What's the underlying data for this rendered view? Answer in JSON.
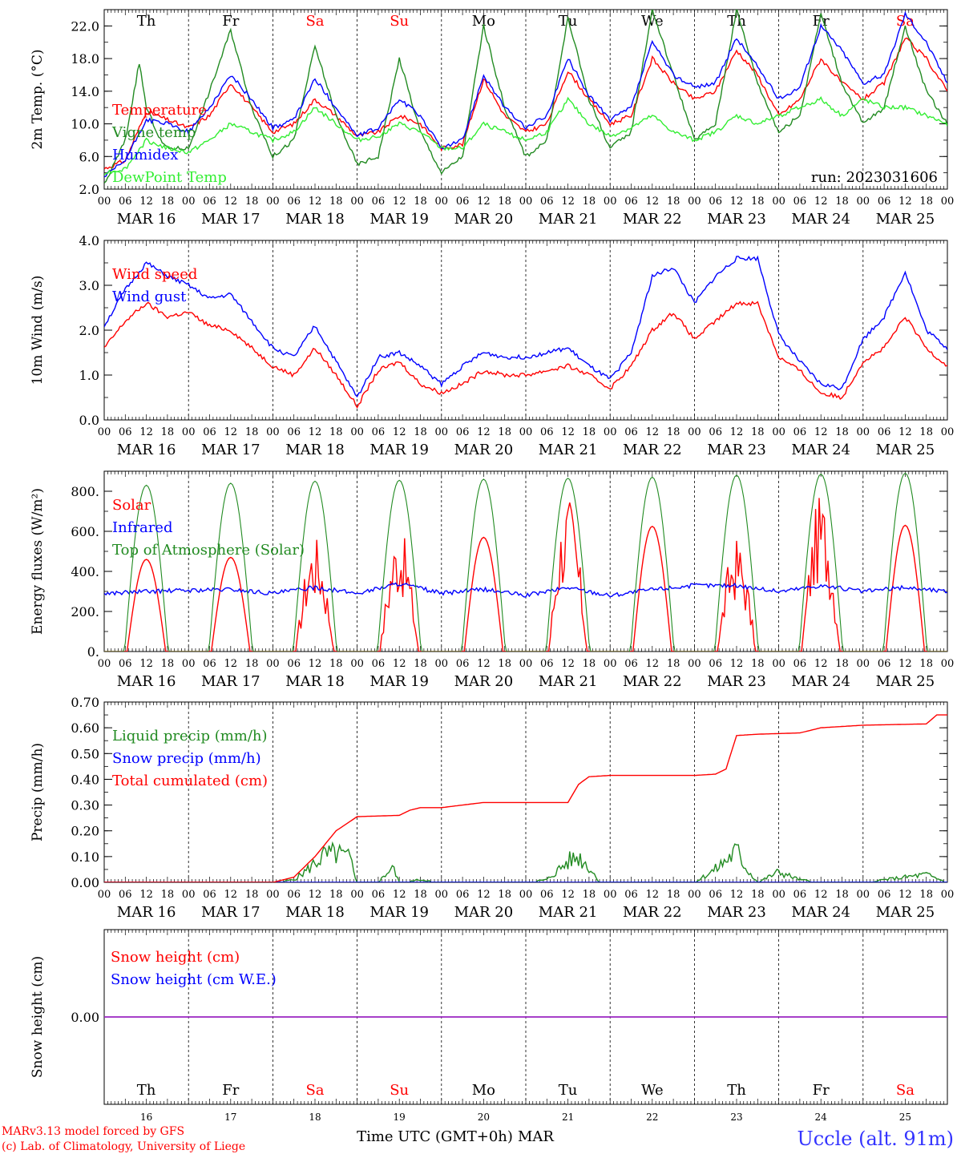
{
  "time_axis": {
    "tick_hours": [
      "00",
      "06",
      "12",
      "18"
    ],
    "last_tick": "00",
    "dates": [
      "MAR 16",
      "MAR 17",
      "MAR 18",
      "MAR 19",
      "MAR 20",
      "MAR 21",
      "MAR 22",
      "MAR 23",
      "MAR 24",
      "MAR 25"
    ],
    "day_names": [
      "Th",
      "Fr",
      "Sa",
      "Su",
      "Mo",
      "Tu",
      "We",
      "Th",
      "Fr",
      "Sa"
    ],
    "day_numbers": [
      "16",
      "17",
      "18",
      "19",
      "20",
      "21",
      "22",
      "23",
      "24",
      "25"
    ],
    "weekend_color": "#ff0000",
    "weekday_color": "#000000",
    "xlabel": "Time UTC (GMT+0h)",
    "month": "MAR"
  },
  "footer": {
    "credit_line1": "MARv3.13 model forced by GFS",
    "credit_line2": "(c) Lab. of Climatology, University of Liege",
    "station": "Uccle (alt. 91m)"
  },
  "chart_data": [
    {
      "type": "line",
      "ylabel": "2m Temp. (°C)",
      "ylim": [
        2,
        24
      ],
      "yticks": [
        "2.0",
        "6.0",
        "10.0",
        "14.0",
        "18.0",
        "22.0"
      ],
      "annotation": "run: 2023031606",
      "x_unit": "hours since MAR 16 00 UTC",
      "series": [
        {
          "name": "Temperature",
          "color": "#ff0000",
          "x": [
            0,
            6,
            12,
            18,
            24,
            30,
            36,
            42,
            48,
            54,
            60,
            66,
            72,
            78,
            84,
            90,
            96,
            102,
            108,
            114,
            120,
            126,
            132,
            138,
            144,
            150,
            156,
            162,
            168,
            174,
            180,
            186,
            192,
            198,
            204,
            210,
            216,
            222,
            228,
            234,
            240
          ],
          "y": [
            4.5,
            5.5,
            11.5,
            10.5,
            9.5,
            11,
            15,
            12,
            9,
            10,
            13,
            11,
            8.5,
            9,
            11,
            10,
            7,
            7.5,
            15.5,
            11,
            9,
            10,
            16.5,
            13,
            10,
            11,
            18,
            15,
            13,
            14,
            19,
            16,
            11,
            13,
            18,
            15,
            13,
            15,
            20.5,
            18,
            14
          ]
        },
        {
          "name": "Vigne temp",
          "color": "#228b22",
          "x": [
            0,
            6,
            10,
            12,
            16,
            18,
            24,
            30,
            36,
            42,
            48,
            54,
            60,
            66,
            72,
            78,
            84,
            90,
            96,
            102,
            108,
            114,
            120,
            126,
            132,
            138,
            144,
            150,
            156,
            162,
            168,
            174,
            180,
            186,
            192,
            198,
            204,
            210,
            216,
            222,
            228,
            234,
            240
          ],
          "y": [
            2.5,
            8,
            17.5,
            12,
            8,
            7,
            7,
            14,
            21.5,
            12,
            6,
            8,
            19.5,
            11,
            5,
            6,
            18,
            9,
            4,
            6,
            22,
            12,
            6,
            8,
            23,
            13,
            7,
            9,
            24,
            16,
            8,
            10,
            24,
            15,
            9,
            11,
            23.5,
            15,
            10,
            12,
            22,
            14,
            10
          ]
        },
        {
          "name": "Humidex",
          "color": "#0000ff",
          "x": [
            0,
            6,
            12,
            18,
            24,
            30,
            36,
            42,
            48,
            54,
            60,
            66,
            72,
            78,
            84,
            90,
            96,
            102,
            108,
            114,
            120,
            126,
            132,
            138,
            144,
            150,
            156,
            162,
            168,
            174,
            180,
            186,
            192,
            198,
            204,
            210,
            216,
            222,
            228,
            234,
            240
          ],
          "y": [
            3.5,
            5.5,
            10.5,
            10,
            9,
            12,
            16,
            13,
            9.5,
            10.5,
            15.5,
            12,
            8.5,
            9.5,
            13,
            11,
            7,
            8,
            16,
            12,
            9.5,
            11,
            18,
            13.5,
            10.5,
            12,
            20,
            16,
            14.5,
            15,
            20.5,
            17,
            13,
            14.5,
            22,
            19,
            15,
            16,
            23.5,
            20,
            15
          ]
        },
        {
          "name": "DewPoint Temp",
          "color": "#33ee33",
          "x": [
            0,
            6,
            12,
            18,
            24,
            30,
            36,
            42,
            48,
            54,
            60,
            66,
            72,
            78,
            84,
            90,
            96,
            102,
            108,
            114,
            120,
            126,
            132,
            138,
            144,
            150,
            156,
            162,
            168,
            174,
            180,
            186,
            192,
            198,
            204,
            210,
            216,
            222,
            228,
            234,
            240
          ],
          "y": [
            4,
            4.5,
            8,
            7,
            6.5,
            8,
            10,
            9,
            8,
            9,
            12,
            10,
            8,
            8.5,
            10,
            9,
            7,
            7,
            10,
            9,
            8,
            9,
            13,
            10,
            8.5,
            9.5,
            11,
            9,
            8,
            9,
            11,
            10,
            11,
            12,
            13,
            11,
            13,
            12,
            12,
            11,
            10
          ]
        }
      ]
    },
    {
      "type": "line",
      "ylabel": "10m Wind (m/s)",
      "ylim": [
        0,
        4
      ],
      "yticks": [
        "0.0",
        "1.0",
        "2.0",
        "3.0",
        "4.0"
      ],
      "x_unit": "hours since MAR 16 00 UTC",
      "series": [
        {
          "name": "Wind speed",
          "color": "#ff0000",
          "x": [
            0,
            6,
            12,
            18,
            24,
            30,
            36,
            42,
            48,
            54,
            60,
            66,
            72,
            78,
            84,
            90,
            96,
            102,
            108,
            114,
            120,
            126,
            132,
            138,
            144,
            150,
            156,
            162,
            168,
            174,
            180,
            186,
            192,
            198,
            204,
            210,
            216,
            222,
            228,
            234,
            240
          ],
          "y": [
            1.6,
            2.2,
            2.6,
            2.3,
            2.4,
            2.1,
            2.0,
            1.6,
            1.2,
            1.0,
            1.6,
            1.0,
            0.3,
            1.1,
            1.3,
            0.8,
            0.6,
            0.8,
            1.1,
            1.0,
            1.0,
            1.1,
            1.2,
            1.0,
            0.7,
            1.2,
            2.0,
            2.4,
            1.8,
            2.2,
            2.6,
            2.6,
            1.4,
            1.1,
            0.6,
            0.5,
            1.3,
            1.6,
            2.3,
            1.6,
            1.2
          ]
        },
        {
          "name": "Wind gust",
          "color": "#0000ff",
          "x": [
            0,
            6,
            12,
            18,
            24,
            30,
            36,
            42,
            48,
            54,
            60,
            66,
            72,
            78,
            84,
            90,
            96,
            102,
            108,
            114,
            120,
            126,
            132,
            138,
            144,
            150,
            156,
            162,
            168,
            174,
            180,
            186,
            192,
            198,
            204,
            210,
            216,
            222,
            228,
            234,
            240
          ],
          "y": [
            2.1,
            2.9,
            3.5,
            3.2,
            3.0,
            2.7,
            2.8,
            2.2,
            1.6,
            1.4,
            2.1,
            1.3,
            0.5,
            1.4,
            1.5,
            1.2,
            0.8,
            1.2,
            1.5,
            1.4,
            1.4,
            1.5,
            1.6,
            1.2,
            0.9,
            1.5,
            3.2,
            3.4,
            2.6,
            3.2,
            3.6,
            3.6,
            1.9,
            1.3,
            0.8,
            0.7,
            1.8,
            2.3,
            3.3,
            2.0,
            1.6
          ]
        }
      ]
    },
    {
      "type": "line",
      "ylabel": "Energy fluxes (W/m²)",
      "ylim": [
        0,
        900
      ],
      "yticks": [
        "0.",
        "200.",
        "400.",
        "600.",
        "800."
      ],
      "x_unit": "hours since MAR 16 00 UTC",
      "series": [
        {
          "name": "Solar",
          "color": "#ff0000",
          "daily_peak": [
            460,
            470,
            460,
            490,
            570,
            620,
            625,
            450,
            620,
            630
          ]
        },
        {
          "name": "Infrared",
          "color": "#0000ff",
          "x": [
            0,
            12,
            24,
            36,
            48,
            60,
            72,
            84,
            96,
            108,
            120,
            132,
            144,
            156,
            168,
            180,
            192,
            204,
            216,
            228,
            240
          ],
          "y": [
            290,
            300,
            305,
            310,
            290,
            320,
            290,
            340,
            290,
            310,
            280,
            320,
            280,
            310,
            330,
            330,
            300,
            330,
            300,
            320,
            300
          ]
        },
        {
          "name": "Top of Atmosphere (Solar)",
          "color": "#228b22",
          "daily_peak": [
            830,
            840,
            850,
            855,
            860,
            865,
            870,
            880,
            885,
            890
          ]
        }
      ]
    },
    {
      "type": "line",
      "ylabel": "Precip (mm/h)",
      "ylim": [
        0,
        0.7
      ],
      "yticks": [
        "0.00",
        "0.10",
        "0.20",
        "0.30",
        "0.40",
        "0.50",
        "0.60",
        "0.70"
      ],
      "x_unit": "hours since MAR 16 00 UTC",
      "series": [
        {
          "name": "Liquid precip (mm/h)",
          "color": "#228b22",
          "x": [
            0,
            48,
            54,
            58,
            62,
            66,
            70,
            72,
            78,
            82,
            84,
            90,
            96,
            120,
            126,
            132,
            135,
            138,
            141,
            144,
            168,
            174,
            180,
            183,
            186,
            192,
            198,
            204,
            216,
            234,
            240
          ],
          "y": [
            0,
            0,
            0.01,
            0.05,
            0.1,
            0.11,
            0.09,
            0,
            0,
            0.06,
            0,
            0.01,
            0,
            0,
            0.01,
            0.08,
            0.1,
            0.06,
            0,
            0,
            0,
            0.05,
            0.12,
            0.05,
            0,
            0.04,
            0.01,
            0,
            0,
            0.03,
            0
          ]
        },
        {
          "name": "Snow precip (mm/h)",
          "color": "#0000ff",
          "x": [
            0,
            240
          ],
          "y": [
            0,
            0
          ]
        },
        {
          "name": "Total cumulated (cm)",
          "color": "#ff0000",
          "x": [
            0,
            48,
            54,
            60,
            66,
            72,
            84,
            87,
            90,
            96,
            108,
            120,
            126,
            132,
            135,
            138,
            144,
            168,
            174,
            177,
            180,
            186,
            198,
            204,
            216,
            234,
            237,
            240
          ],
          "y": [
            0,
            0,
            0.02,
            0.1,
            0.2,
            0.255,
            0.26,
            0.28,
            0.29,
            0.29,
            0.31,
            0.31,
            0.31,
            0.31,
            0.38,
            0.41,
            0.415,
            0.415,
            0.42,
            0.44,
            0.57,
            0.575,
            0.58,
            0.6,
            0.61,
            0.615,
            0.65,
            0.65
          ]
        }
      ]
    },
    {
      "type": "line",
      "ylabel": "Snow height (cm)",
      "ylim": [
        -0.01,
        0.01
      ],
      "yticks": [
        "0.00"
      ],
      "x_unit": "hours since MAR 16 00 UTC",
      "series": [
        {
          "name": "Snow height (cm)",
          "color": "#ff0000",
          "x": [
            0,
            240
          ],
          "y": [
            0,
            0
          ]
        },
        {
          "name": "Snow height (cm W.E.)",
          "color": "#0000ff",
          "x": [
            0,
            240
          ],
          "y": [
            0,
            0
          ]
        }
      ]
    }
  ]
}
